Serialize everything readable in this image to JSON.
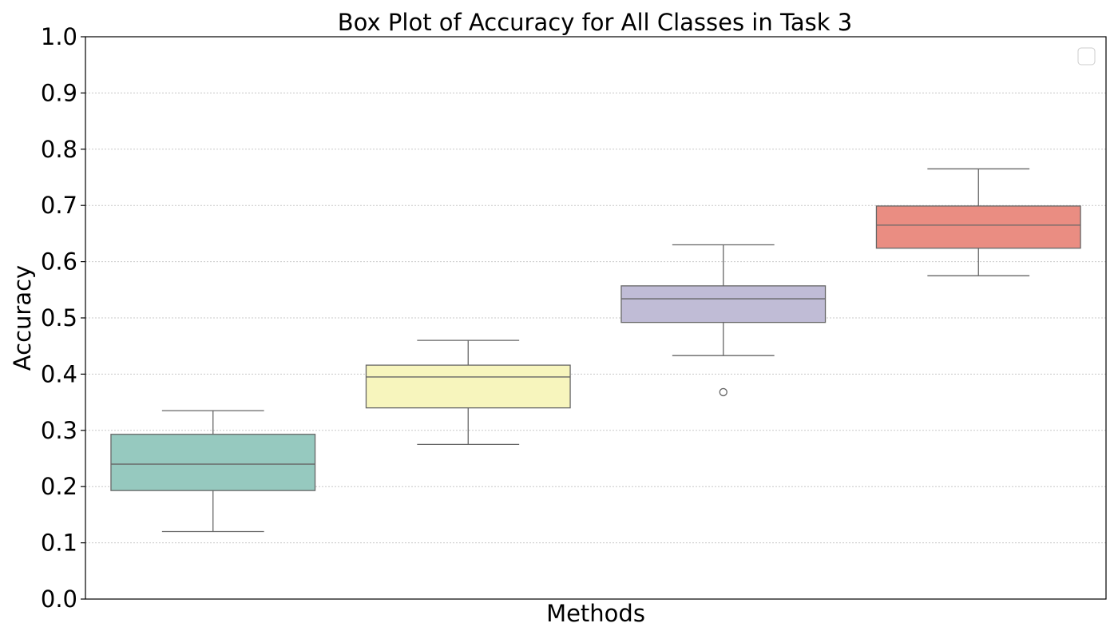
{
  "chart_data": {
    "type": "box",
    "title": "Box Plot of Accuracy for All Classes in Task 3",
    "xlabel": "Methods",
    "ylabel": "Accuracy",
    "ylim": [
      0.0,
      1.0
    ],
    "yticks": [
      "0.0",
      "0.1",
      "0.2",
      "0.3",
      "0.4",
      "0.5",
      "0.6",
      "0.7",
      "0.8",
      "0.9",
      "1.0"
    ],
    "grid": "horizontal-dotted",
    "legend": {
      "placement": "top-right",
      "entries": []
    },
    "boxes": [
      {
        "whisker_low": 0.12,
        "q1": 0.193,
        "median": 0.24,
        "q3": 0.293,
        "whisker_high": 0.335,
        "outliers": [],
        "color": "#96c9bf"
      },
      {
        "whisker_low": 0.275,
        "q1": 0.34,
        "median": 0.395,
        "q3": 0.416,
        "whisker_high": 0.46,
        "outliers": [],
        "color": "#f7f5bd"
      },
      {
        "whisker_low": 0.433,
        "q1": 0.492,
        "median": 0.534,
        "q3": 0.557,
        "whisker_high": 0.63,
        "outliers": [
          0.368
        ],
        "color": "#c0bcd6"
      },
      {
        "whisker_low": 0.575,
        "q1": 0.624,
        "median": 0.665,
        "q3": 0.699,
        "whisker_high": 0.765,
        "outliers": [],
        "color": "#ea8d82"
      }
    ]
  }
}
